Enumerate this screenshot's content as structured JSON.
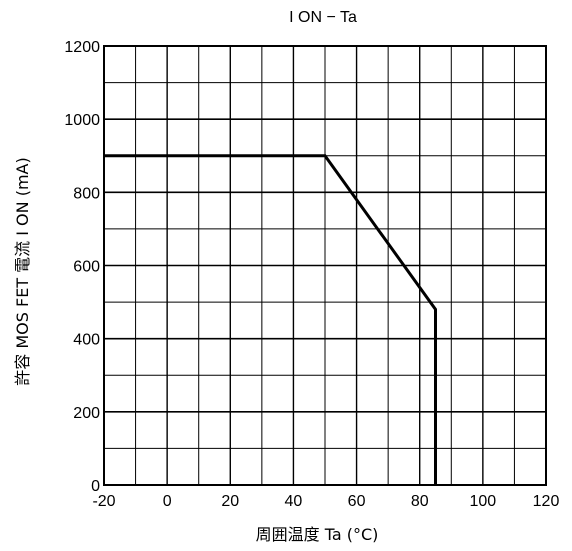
{
  "chart_data": {
    "type": "line",
    "title": "I ON − Ta",
    "xlabel": "周囲温度 Ta (°C)",
    "ylabel": "許容 MOS FET 電流 I ON (mA)",
    "xlim": [
      -20,
      120
    ],
    "ylim": [
      0,
      1200
    ],
    "x_ticks": [
      -20,
      0,
      20,
      40,
      60,
      80,
      100,
      120
    ],
    "y_ticks": [
      0,
      200,
      400,
      600,
      800,
      1000,
      1200
    ],
    "x_tick_labels": [
      "-20",
      "0",
      "20",
      "40",
      "60",
      "80",
      "100",
      "120"
    ],
    "y_tick_labels": [
      "0",
      "200",
      "400",
      "600",
      "800",
      "1000",
      "1200"
    ],
    "grid": true,
    "grid_x_step": 10,
    "grid_y_step": 100,
    "series": [
      {
        "x": [
          -20,
          50,
          85,
          85
        ],
        "y": [
          900,
          900,
          480,
          0
        ]
      }
    ],
    "colors": {
      "line": "#000000",
      "grid": "#000000",
      "background": "#ffffff"
    }
  }
}
